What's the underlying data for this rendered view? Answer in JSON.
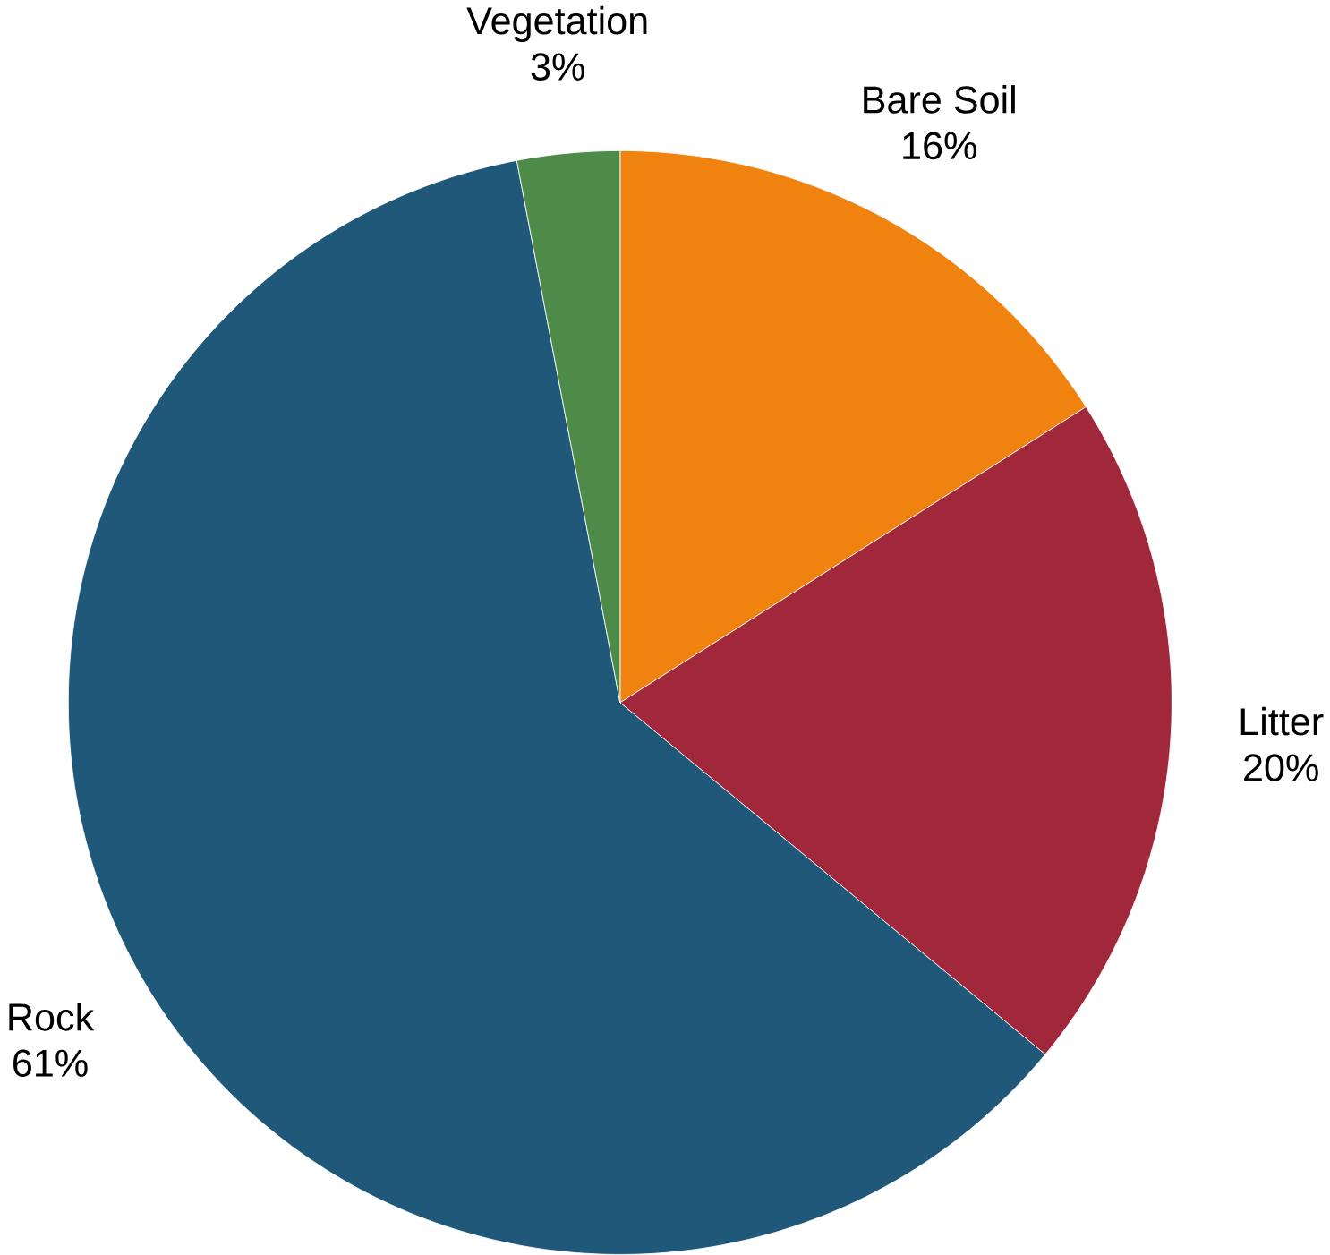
{
  "chart_data": {
    "type": "pie",
    "categories": [
      "Bare Soil",
      "Litter",
      "Rock",
      "Vegetation"
    ],
    "values": [
      16,
      20,
      61,
      3
    ],
    "value_labels": [
      "16%",
      "20%",
      "61%",
      "3%"
    ],
    "colors": [
      "#f0820f",
      "#a0283a",
      "#1f5878",
      "#4e8a48"
    ]
  }
}
